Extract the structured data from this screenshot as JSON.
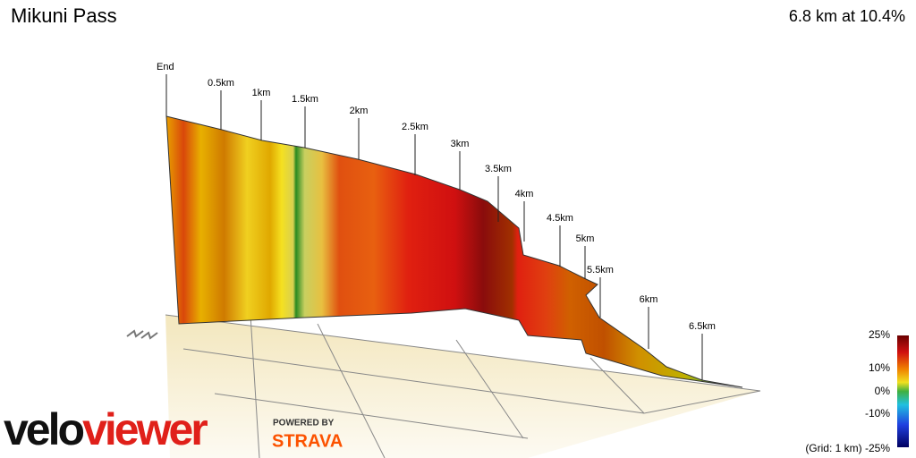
{
  "header": {
    "title": "Mikuni Pass",
    "summary": "6.8 km at 10.4%"
  },
  "markers": [
    "End",
    "0.5km",
    "1km",
    "1.5km",
    "2km",
    "2.5km",
    "3km",
    "3.5km",
    "4km",
    "4.5km",
    "5km",
    "5.5km",
    "6km",
    "6.5km"
  ],
  "legend": {
    "labels": [
      "25%",
      "10%",
      "0%",
      "-10%",
      "(Grid: 1 km) -25%"
    ]
  },
  "branding": {
    "logo_left": "velo",
    "logo_right": "viewer",
    "powered_by": "POWERED BY",
    "partner": "STRAVA"
  }
}
